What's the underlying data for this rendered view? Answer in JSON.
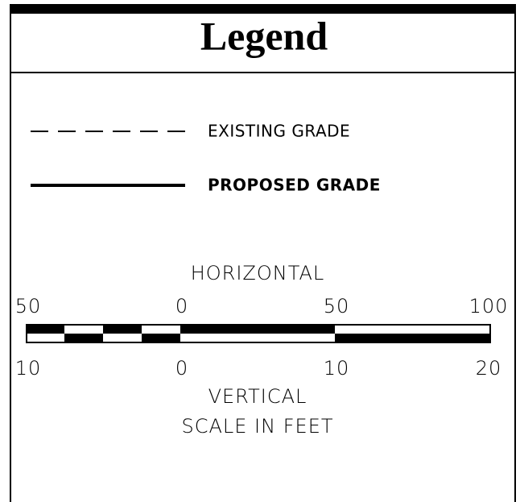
{
  "title": "Legend",
  "items": [
    {
      "label": "EXISTING GRADE"
    },
    {
      "label": "PROPOSED GRADE"
    }
  ],
  "scale": {
    "horizontal_title": "HORIZONTAL",
    "horizontal_labels": [
      50,
      0,
      50,
      100
    ],
    "vertical_labels": [
      10,
      0,
      10,
      20
    ],
    "vertical_title": "VERTICAL",
    "caption": "SCALE IN FEET"
  }
}
